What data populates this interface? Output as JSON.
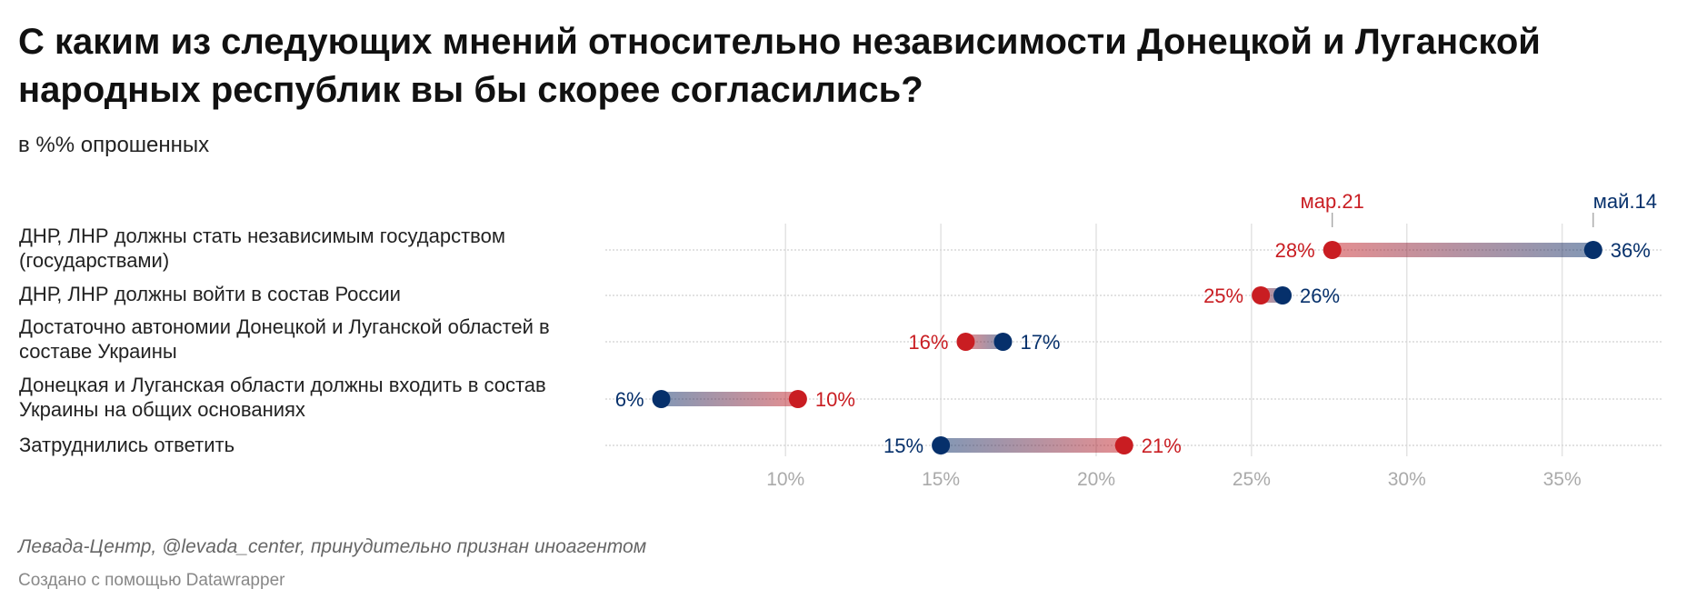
{
  "title": "С каким из следующих мнений относительно независимости Донецкой и Луганской народных республик вы бы скорее согласились?",
  "subtitle": "в %% опрошенных",
  "source": "Левада-Центр, @levada_center, принудительно признан иноагентом",
  "credit": "Создано с помощью Datawrapper",
  "chart_data": {
    "type": "range-dot",
    "unit": "%",
    "xlim": [
      4.2,
      38.2
    ],
    "xticks": [
      10,
      15,
      20,
      25,
      30,
      35
    ],
    "xtick_labels": [
      "10%",
      "15%",
      "20%",
      "25%",
      "30%",
      "35%"
    ],
    "grid": true,
    "colors": {
      "мар.21": "#c91d22",
      "май.14": "#06306b"
    },
    "series": [
      {
        "name": "мар.21",
        "color": "#c91d22",
        "values": [
          27.6,
          25.3,
          15.8,
          10.4,
          20.9
        ],
        "labels": [
          "28%",
          "25%",
          "16%",
          "10%",
          "21%"
        ]
      },
      {
        "name": "май.14",
        "color": "#06306b",
        "values": [
          36,
          26,
          17,
          6,
          15
        ],
        "labels": [
          "36%",
          "26%",
          "17%",
          "6%",
          "15%"
        ]
      }
    ],
    "categories": [
      "ДНР, ЛНР должны стать независимым государством (государствами)",
      "ДНР, ЛНР должны войти в состав России",
      "Достаточно автономии Донецкой и Луганской областей в составе Украины",
      "Донецкая и Луганская области должны входить в состав Украины на общих основаниях",
      "Затруднились ответить"
    ]
  }
}
